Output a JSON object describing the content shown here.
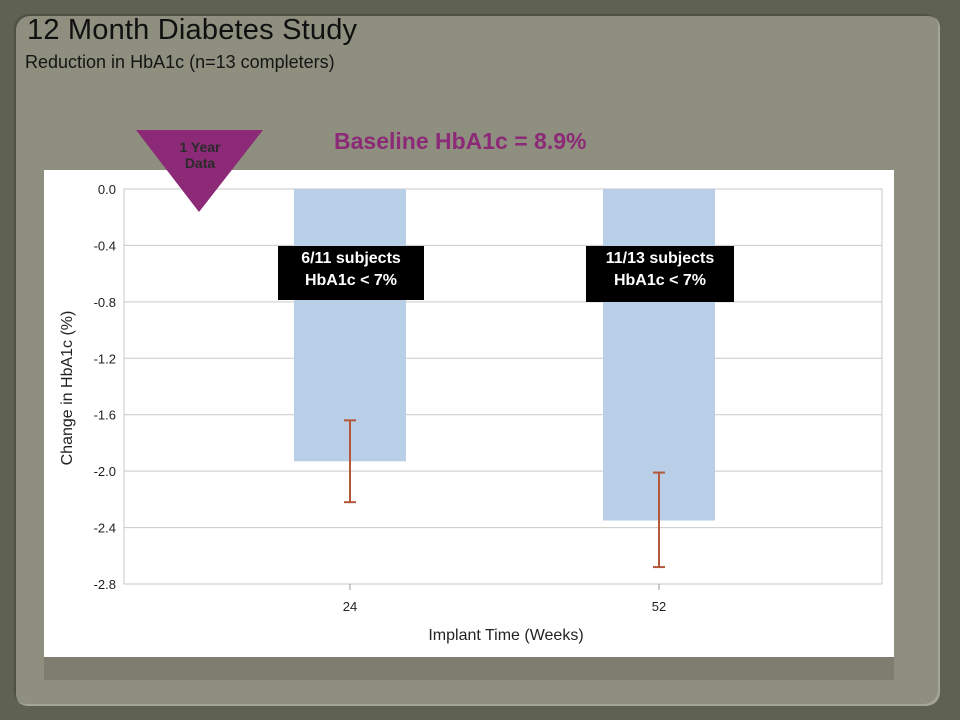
{
  "slide": {
    "title": "12 Month Diabetes Study",
    "subtitle": "Reduction in HbA1c (n=13 completers)",
    "baseline_note": "Baseline HbA1c = 8.9%",
    "badge": {
      "line1": "1 Year",
      "line2": "Data",
      "color": "#8c2a78"
    }
  },
  "chart_data": {
    "type": "bar",
    "xlabel": "Implant Time (Weeks)",
    "ylabel": "Change in HbA1c (%)",
    "categories": [
      "24",
      "52"
    ],
    "values": [
      -1.93,
      -2.35
    ],
    "error_low": [
      -2.22,
      -2.68
    ],
    "error_high": [
      -1.64,
      -2.01
    ],
    "ylim": [
      -2.8,
      0.0
    ],
    "yticks": [
      "0.0",
      "-0.4",
      "-0.8",
      "-1.2",
      "-1.6",
      "-2.0",
      "-2.4",
      "-2.8"
    ],
    "grid": true,
    "bar_color": "#b9cfe7",
    "error_color": "#b5573a",
    "annotations": [
      {
        "category": "24",
        "line1": "6/11 subjects",
        "line2": "HbA1c < 7%"
      },
      {
        "category": "52",
        "line1": "11/13 subjects",
        "line2": "HbA1c < 7%"
      }
    ]
  }
}
